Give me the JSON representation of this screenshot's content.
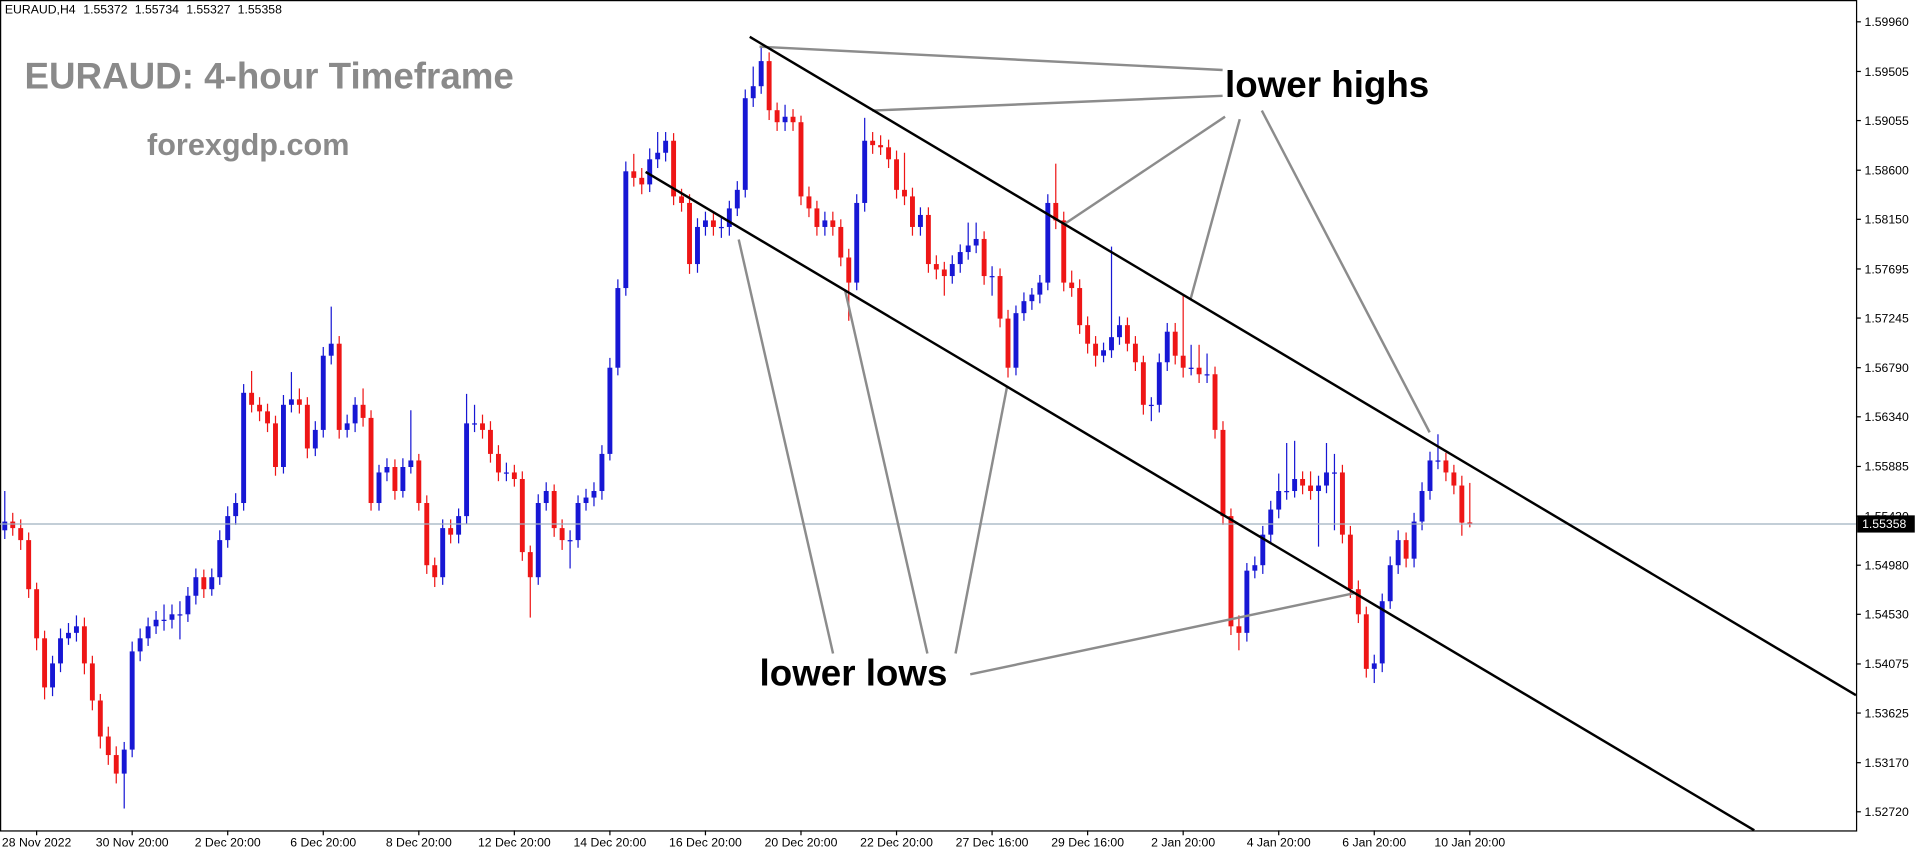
{
  "chart_data": {
    "type": "candlestick",
    "symbol": "EURAUD,H4",
    "title": "EURAUD: 4-hour Timeframe",
    "subtitle": "forexgdp.com",
    "annotations": [
      "lower highs",
      "lower lows"
    ],
    "up_color": "#1717d4",
    "down_color": "#ee1616",
    "ylim": [
      1.5255,
      1.6016
    ],
    "yticks": [
      {
        "value": 1.5996,
        "label": "1.59960"
      },
      1.59505,
      1.59055,
      {
        "value": 1.586,
        "label": "1.58600"
      },
      {
        "value": 1.5815,
        "label": "1.58150"
      },
      1.57695,
      1.57245,
      {
        "value": 1.5679,
        "label": "1.56790"
      },
      {
        "value": 1.5634,
        "label": "1.56340"
      },
      1.55885,
      {
        "value": 1.5543,
        "label": "1.55430"
      },
      {
        "value": 1.5498,
        "label": "1.54980"
      },
      {
        "value": 1.5453,
        "label": "1.54530"
      },
      1.54075,
      1.53625,
      {
        "value": 1.5317,
        "label": "1.53170"
      },
      {
        "value": 1.5272,
        "label": "1.52720"
      }
    ],
    "xlim": [
      -0.6,
      232.5
    ],
    "xticks": [
      {
        "value": 4,
        "label": "28 Nov 2022"
      },
      {
        "value": 16,
        "label": "30 Nov 20:00"
      },
      {
        "value": 28,
        "label": "2 Dec 20:00"
      },
      {
        "value": 40,
        "label": "6 Dec 20:00"
      },
      {
        "value": 52,
        "label": "8 Dec 20:00"
      },
      {
        "value": 64,
        "label": "12 Dec 20:00"
      },
      {
        "value": 76,
        "label": "14 Dec 20:00"
      },
      {
        "value": 88,
        "label": "16 Dec 20:00"
      },
      {
        "value": 100,
        "label": "20 Dec 20:00"
      },
      {
        "value": 112,
        "label": "22 Dec 20:00"
      },
      {
        "value": 124,
        "label": "27 Dec 16:00"
      },
      {
        "value": 136,
        "label": "29 Dec 16:00"
      },
      {
        "value": 148,
        "label": "2 Jan 20:00"
      },
      {
        "value": 160,
        "label": "4 Jan 20:00"
      },
      {
        "value": 172,
        "label": "6 Jan 20:00"
      },
      {
        "value": 184,
        "label": "10 Jan 20:00"
      }
    ],
    "candles": [
      [
        1.553,
        1.5566,
        1.5522,
        1.5538
      ],
      [
        1.5538,
        1.5546,
        1.5525,
        1.5532
      ],
      [
        1.5532,
        1.554,
        1.5512,
        1.5521
      ],
      [
        1.5521,
        1.5528,
        1.5468,
        1.5476
      ],
      [
        1.5476,
        1.5482,
        1.542,
        1.5431
      ],
      [
        1.5431,
        1.5438,
        1.5375,
        1.5386
      ],
      [
        1.5386,
        1.5415,
        1.5378,
        1.5408
      ],
      [
        1.5408,
        1.544,
        1.54,
        1.5431
      ],
      [
        1.5431,
        1.5445,
        1.5425,
        1.5436
      ],
      [
        1.5436,
        1.5452,
        1.5428,
        1.5442
      ],
      [
        1.5442,
        1.545,
        1.5398,
        1.5408
      ],
      [
        1.5408,
        1.5415,
        1.5365,
        1.5374
      ],
      [
        1.5374,
        1.538,
        1.533,
        1.5341
      ],
      [
        1.5341,
        1.535,
        1.5315,
        1.5324
      ],
      [
        1.5324,
        1.5332,
        1.5298,
        1.5307
      ],
      [
        1.5307,
        1.5336,
        1.5275,
        1.5329
      ],
      [
        1.5329,
        1.5428,
        1.5322,
        1.5419
      ],
      [
        1.5419,
        1.544,
        1.541,
        1.5431
      ],
      [
        1.5431,
        1.545,
        1.5424,
        1.5442
      ],
      [
        1.5442,
        1.5456,
        1.5435,
        1.5448
      ],
      [
        1.5448,
        1.5462,
        1.5438,
        1.5448
      ],
      [
        1.5448,
        1.5462,
        1.544,
        1.5453
      ],
      [
        1.5453,
        1.5465,
        1.543,
        1.5453
      ],
      [
        1.5453,
        1.5478,
        1.5446,
        1.547
      ],
      [
        1.547,
        1.5495,
        1.5462,
        1.5487
      ],
      [
        1.5487,
        1.5494,
        1.5468,
        1.5476
      ],
      [
        1.5476,
        1.5495,
        1.547,
        1.5487
      ],
      [
        1.5487,
        1.553,
        1.548,
        1.5521
      ],
      [
        1.5521,
        1.5552,
        1.5514,
        1.5543
      ],
      [
        1.5543,
        1.5564,
        1.5535,
        1.5555
      ],
      [
        1.5555,
        1.5664,
        1.5548,
        1.5656
      ],
      [
        1.5656,
        1.5676,
        1.5638,
        1.5645
      ],
      [
        1.5645,
        1.5652,
        1.563,
        1.5639
      ],
      [
        1.5639,
        1.5646,
        1.562,
        1.5628
      ],
      [
        1.5628,
        1.5635,
        1.558,
        1.5588
      ],
      [
        1.5588,
        1.5654,
        1.5582,
        1.5645
      ],
      [
        1.5645,
        1.5675,
        1.5638,
        1.565
      ],
      [
        1.565,
        1.566,
        1.5637,
        1.5645
      ],
      [
        1.5645,
        1.5652,
        1.5596,
        1.5605
      ],
      [
        1.5605,
        1.563,
        1.5598,
        1.5622
      ],
      [
        1.5622,
        1.5698,
        1.5615,
        1.569
      ],
      [
        1.569,
        1.5735,
        1.5682,
        1.5701
      ],
      [
        1.5701,
        1.5708,
        1.5614,
        1.5622
      ],
      [
        1.5622,
        1.5636,
        1.5615,
        1.5628
      ],
      [
        1.5628,
        1.5652,
        1.562,
        1.5645
      ],
      [
        1.5645,
        1.566,
        1.5625,
        1.5633
      ],
      [
        1.5633,
        1.564,
        1.5548,
        1.5555
      ],
      [
        1.5555,
        1.559,
        1.5548,
        1.5583
      ],
      [
        1.5583,
        1.5596,
        1.5575,
        1.5588
      ],
      [
        1.5588,
        1.5595,
        1.5558,
        1.5566
      ],
      [
        1.5566,
        1.5596,
        1.556,
        1.5588
      ],
      [
        1.5588,
        1.564,
        1.5582,
        1.5594
      ],
      [
        1.5594,
        1.56,
        1.5548,
        1.5555
      ],
      [
        1.5555,
        1.5562,
        1.549,
        1.5498
      ],
      [
        1.5498,
        1.5505,
        1.5478,
        1.5487
      ],
      [
        1.5487,
        1.554,
        1.548,
        1.5532
      ],
      [
        1.5532,
        1.554,
        1.5518,
        1.5526
      ],
      [
        1.5526,
        1.555,
        1.5518,
        1.5543
      ],
      [
        1.5543,
        1.5655,
        1.5536,
        1.5628
      ],
      [
        1.5628,
        1.5645,
        1.562,
        1.5628
      ],
      [
        1.5628,
        1.5636,
        1.5614,
        1.5622
      ],
      [
        1.5622,
        1.563,
        1.5592,
        1.56
      ],
      [
        1.56,
        1.5608,
        1.5575,
        1.5583
      ],
      [
        1.5583,
        1.5592,
        1.5575,
        1.5583
      ],
      [
        1.5583,
        1.559,
        1.557,
        1.5577
      ],
      [
        1.5577,
        1.5584,
        1.5502,
        1.551
      ],
      [
        1.551,
        1.5516,
        1.545,
        1.5487
      ],
      [
        1.5487,
        1.5563,
        1.548,
        1.5555
      ],
      [
        1.5555,
        1.5574,
        1.5548,
        1.5566
      ],
      [
        1.5566,
        1.5572,
        1.5524,
        1.5532
      ],
      [
        1.5532,
        1.554,
        1.5512,
        1.5521
      ],
      [
        1.5521,
        1.553,
        1.5495,
        1.5521
      ],
      [
        1.5521,
        1.5562,
        1.5514,
        1.5555
      ],
      [
        1.5555,
        1.5568,
        1.5548,
        1.556
      ],
      [
        1.556,
        1.5574,
        1.5552,
        1.5566
      ],
      [
        1.5566,
        1.5608,
        1.5558,
        1.56
      ],
      [
        1.56,
        1.5688,
        1.5594,
        1.5679
      ],
      [
        1.5679,
        1.576,
        1.5672,
        1.5752
      ],
      [
        1.5752,
        1.5868,
        1.5745,
        1.5859
      ],
      [
        1.5859,
        1.5875,
        1.5845,
        1.5853
      ],
      [
        1.5853,
        1.5862,
        1.5838,
        1.5847
      ],
      [
        1.5847,
        1.588,
        1.584,
        1.587
      ],
      [
        1.587,
        1.5895,
        1.5862,
        1.5876
      ],
      [
        1.5876,
        1.5895,
        1.5868,
        1.5887
      ],
      [
        1.5887,
        1.5894,
        1.5828,
        1.5836
      ],
      [
        1.5836,
        1.5843,
        1.5822,
        1.583
      ],
      [
        1.583,
        1.5838,
        1.5765,
        1.5774
      ],
      [
        1.5774,
        1.5816,
        1.5766,
        1.5808
      ],
      [
        1.5808,
        1.5822,
        1.58,
        1.5814
      ],
      [
        1.5814,
        1.5822,
        1.58,
        1.5808
      ],
      [
        1.5808,
        1.5818,
        1.5798,
        1.5808
      ],
      [
        1.5808,
        1.5832,
        1.58,
        1.5825
      ],
      [
        1.5825,
        1.585,
        1.5818,
        1.5842
      ],
      [
        1.5842,
        1.5934,
        1.5835,
        1.5926
      ],
      [
        1.5926,
        1.5955,
        1.5918,
        1.5937
      ],
      [
        1.5937,
        1.5972,
        1.593,
        1.596
      ],
      [
        1.596,
        1.5968,
        1.5906,
        1.5915
      ],
      [
        1.5915,
        1.5922,
        1.5896,
        1.5904
      ],
      [
        1.5904,
        1.592,
        1.5896,
        1.5909
      ],
      [
        1.5909,
        1.5916,
        1.5896,
        1.5904
      ],
      [
        1.5904,
        1.591,
        1.5828,
        1.5836
      ],
      [
        1.5836,
        1.5845,
        1.5817,
        1.5825
      ],
      [
        1.5825,
        1.5832,
        1.58,
        1.5808
      ],
      [
        1.5808,
        1.5822,
        1.58,
        1.5814
      ],
      [
        1.5814,
        1.5822,
        1.58,
        1.5808
      ],
      [
        1.5808,
        1.5815,
        1.5772,
        1.578
      ],
      [
        1.578,
        1.5788,
        1.5722,
        1.5757
      ],
      [
        1.5757,
        1.5838,
        1.575,
        1.583
      ],
      [
        1.583,
        1.5908,
        1.5822,
        1.5887
      ],
      [
        1.5887,
        1.5895,
        1.5875,
        1.5883
      ],
      [
        1.5883,
        1.5892,
        1.5874,
        1.5881
      ],
      [
        1.5881,
        1.5888,
        1.5862,
        1.587
      ],
      [
        1.587,
        1.5878,
        1.5834,
        1.5842
      ],
      [
        1.5842,
        1.5876,
        1.5828,
        1.5836
      ],
      [
        1.5836,
        1.5844,
        1.58,
        1.5808
      ],
      [
        1.5808,
        1.5826,
        1.58,
        1.5819
      ],
      [
        1.5819,
        1.5826,
        1.5766,
        1.5774
      ],
      [
        1.5774,
        1.5782,
        1.576,
        1.5769
      ],
      [
        1.5769,
        1.5776,
        1.5745,
        1.5763
      ],
      [
        1.5763,
        1.5782,
        1.5756,
        1.5774
      ],
      [
        1.5774,
        1.5792,
        1.5766,
        1.5785
      ],
      [
        1.5785,
        1.5812,
        1.5778,
        1.5791
      ],
      [
        1.5791,
        1.5812,
        1.5784,
        1.5797
      ],
      [
        1.5797,
        1.5804,
        1.5755,
        1.5763
      ],
      [
        1.5763,
        1.5772,
        1.5745,
        1.5763
      ],
      [
        1.5763,
        1.577,
        1.5716,
        1.5724
      ],
      [
        1.5724,
        1.5732,
        1.567,
        1.5679
      ],
      [
        1.5679,
        1.5736,
        1.5672,
        1.5729
      ],
      [
        1.5729,
        1.5748,
        1.5722,
        1.574
      ],
      [
        1.574,
        1.5752,
        1.5732,
        1.5746
      ],
      [
        1.5746,
        1.5764,
        1.5738,
        1.5757
      ],
      [
        1.5757,
        1.5838,
        1.575,
        1.583
      ],
      [
        1.583,
        1.5866,
        1.5806,
        1.5814
      ],
      [
        1.5814,
        1.5822,
        1.5749,
        1.5757
      ],
      [
        1.5757,
        1.5768,
        1.5744,
        1.5752
      ],
      [
        1.5752,
        1.576,
        1.571,
        1.5718
      ],
      [
        1.5718,
        1.5726,
        1.5692,
        1.5701
      ],
      [
        1.5701,
        1.5708,
        1.568,
        1.569
      ],
      [
        1.569,
        1.5702,
        1.5684,
        1.5695
      ],
      [
        1.5695,
        1.579,
        1.5688,
        1.5707
      ],
      [
        1.5707,
        1.5726,
        1.57,
        1.5718
      ],
      [
        1.5718,
        1.5725,
        1.5694,
        1.5701
      ],
      [
        1.5701,
        1.5708,
        1.5676,
        1.5684
      ],
      [
        1.5684,
        1.569,
        1.5636,
        1.5645
      ],
      [
        1.5645,
        1.5652,
        1.563,
        1.5645
      ],
      [
        1.5645,
        1.5692,
        1.5638,
        1.5684
      ],
      [
        1.5684,
        1.572,
        1.5676,
        1.5712
      ],
      [
        1.5712,
        1.572,
        1.5682,
        1.569
      ],
      [
        1.569,
        1.5745,
        1.567,
        1.5679
      ],
      [
        1.5679,
        1.57,
        1.5672,
        1.5679
      ],
      [
        1.5679,
        1.57,
        1.5665,
        1.5673
      ],
      [
        1.5673,
        1.5692,
        1.5665,
        1.5673
      ],
      [
        1.5673,
        1.568,
        1.5614,
        1.5622
      ],
      [
        1.5622,
        1.563,
        1.5535,
        1.5543
      ],
      [
        1.5543,
        1.555,
        1.5434,
        1.5442
      ],
      [
        1.5442,
        1.5452,
        1.542,
        1.5436
      ],
      [
        1.5436,
        1.55,
        1.5428,
        1.5493
      ],
      [
        1.5493,
        1.5506,
        1.5486,
        1.5498
      ],
      [
        1.5498,
        1.5534,
        1.549,
        1.5526
      ],
      [
        1.5526,
        1.5557,
        1.5518,
        1.5549
      ],
      [
        1.5549,
        1.5582,
        1.5541,
        1.5566
      ],
      [
        1.5566,
        1.561,
        1.5558,
        1.5566
      ],
      [
        1.5566,
        1.5612,
        1.556,
        1.5577
      ],
      [
        1.5577,
        1.5584,
        1.5563,
        1.5571
      ],
      [
        1.5571,
        1.5584,
        1.5558,
        1.5566
      ],
      [
        1.5566,
        1.558,
        1.5515,
        1.5571
      ],
      [
        1.5571,
        1.561,
        1.5564,
        1.5583
      ],
      [
        1.5583,
        1.56,
        1.553,
        1.5583
      ],
      [
        1.5583,
        1.559,
        1.5518,
        1.5526
      ],
      [
        1.5526,
        1.5534,
        1.5468,
        1.5476
      ],
      [
        1.5476,
        1.5484,
        1.5445,
        1.5453
      ],
      [
        1.5453,
        1.546,
        1.5395,
        1.5403
      ],
      [
        1.5403,
        1.5416,
        1.539,
        1.5408
      ],
      [
        1.5408,
        1.5472,
        1.54,
        1.5465
      ],
      [
        1.5465,
        1.5506,
        1.5458,
        1.5498
      ],
      [
        1.5498,
        1.553,
        1.549,
        1.5521
      ],
      [
        1.5521,
        1.5528,
        1.5496,
        1.5504
      ],
      [
        1.5504,
        1.5546,
        1.5496,
        1.5538
      ],
      [
        1.5538,
        1.5574,
        1.553,
        1.5566
      ],
      [
        1.5566,
        1.5602,
        1.5558,
        1.5594
      ],
      [
        1.5594,
        1.5618,
        1.5586,
        1.5594
      ],
      [
        1.5594,
        1.5601,
        1.5575,
        1.5583
      ],
      [
        1.5583,
        1.559,
        1.5563,
        1.5571
      ],
      [
        1.5571,
        1.558,
        1.5525,
        1.5537
      ],
      [
        1.55372,
        1.55734,
        1.55327,
        1.55358
      ]
    ]
  }
}
